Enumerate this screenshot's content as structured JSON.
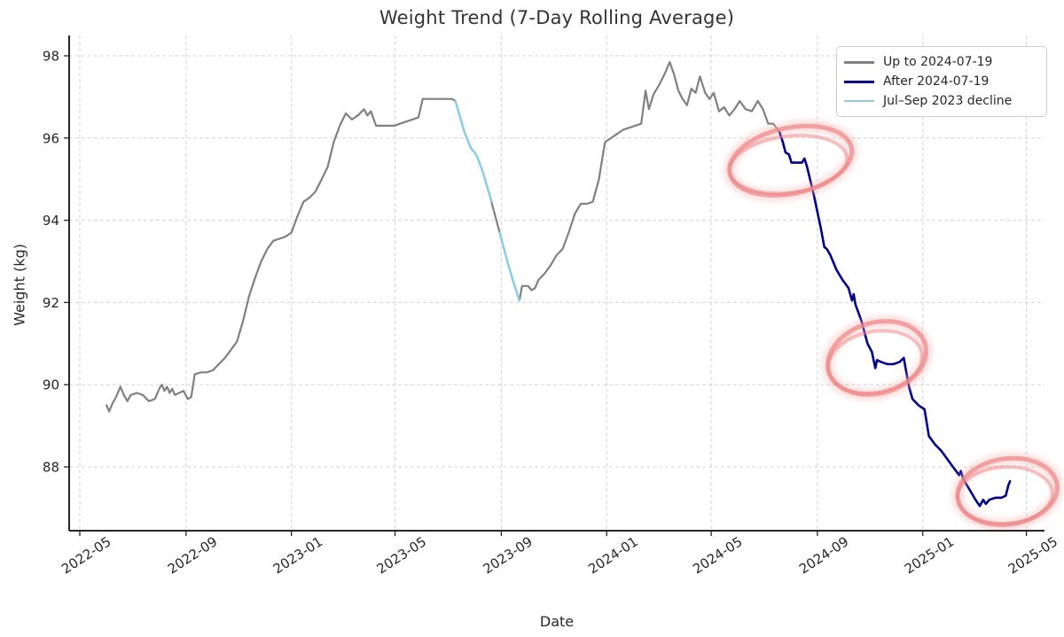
{
  "chart_data": {
    "type": "line",
    "title": "Weight Trend (7-Day Rolling Average)",
    "xlabel": "Date",
    "ylabel": "Weight (kg)",
    "x_tick_labels": [
      "2022-05",
      "2022-09",
      "2023-01",
      "2023-05",
      "2023-09",
      "2024-01",
      "2024-05",
      "2024-09",
      "2025-01",
      "2025-05"
    ],
    "y_tick_labels": [
      "88",
      "90",
      "92",
      "94",
      "96",
      "98"
    ],
    "y_ticks": [
      88,
      90,
      92,
      94,
      96,
      98
    ],
    "ylim": [
      86.45,
      98.55
    ],
    "xlim": [
      "2022-04-19",
      "2025-05-22"
    ],
    "grid": "dashed both axes",
    "legend": {
      "position": "upper right",
      "entries": [
        {
          "label": "Up to 2024-07-19",
          "color": "#808080"
        },
        {
          "label": "After 2024-07-19",
          "color": "#00008B"
        },
        {
          "label": "Jul–Sep 2023 decline",
          "color": "#87CEEB"
        }
      ]
    },
    "series": [
      {
        "name": "Up to 2024-07-19",
        "color": "#808080",
        "width": 2.2,
        "points": [
          [
            "2022-06-01",
            89.5
          ],
          [
            "2022-06-04",
            89.35
          ],
          [
            "2022-06-08",
            89.55
          ],
          [
            "2022-06-12",
            89.7
          ],
          [
            "2022-06-17",
            89.95
          ],
          [
            "2022-06-21",
            89.75
          ],
          [
            "2022-06-25",
            89.6
          ],
          [
            "2022-06-29",
            89.75
          ],
          [
            "2022-07-06",
            89.8
          ],
          [
            "2022-07-13",
            89.75
          ],
          [
            "2022-07-20",
            89.6
          ],
          [
            "2022-07-27",
            89.65
          ],
          [
            "2022-08-01",
            89.9
          ],
          [
            "2022-08-04",
            90.0
          ],
          [
            "2022-08-07",
            89.85
          ],
          [
            "2022-08-10",
            89.95
          ],
          [
            "2022-08-13",
            89.8
          ],
          [
            "2022-08-16",
            89.9
          ],
          [
            "2022-08-19",
            89.75
          ],
          [
            "2022-08-24",
            89.8
          ],
          [
            "2022-08-29",
            89.85
          ],
          [
            "2022-09-03",
            89.65
          ],
          [
            "2022-09-07",
            89.7
          ],
          [
            "2022-09-11",
            90.25
          ],
          [
            "2022-09-18",
            90.3
          ],
          [
            "2022-09-25",
            90.3
          ],
          [
            "2022-10-02",
            90.35
          ],
          [
            "2022-10-09",
            90.5
          ],
          [
            "2022-10-16",
            90.65
          ],
          [
            "2022-10-23",
            90.85
          ],
          [
            "2022-10-30",
            91.05
          ],
          [
            "2022-11-06",
            91.55
          ],
          [
            "2022-11-13",
            92.15
          ],
          [
            "2022-11-20",
            92.6
          ],
          [
            "2022-11-27",
            93.0
          ],
          [
            "2022-12-04",
            93.3
          ],
          [
            "2022-12-11",
            93.5
          ],
          [
            "2022-12-18",
            93.55
          ],
          [
            "2022-12-25",
            93.6
          ],
          [
            "2023-01-01",
            93.7
          ],
          [
            "2023-01-08",
            94.1
          ],
          [
            "2023-01-15",
            94.45
          ],
          [
            "2023-01-22",
            94.55
          ],
          [
            "2023-01-29",
            94.7
          ],
          [
            "2023-02-05",
            95.0
          ],
          [
            "2023-02-12",
            95.3
          ],
          [
            "2023-02-19",
            95.9
          ],
          [
            "2023-02-26",
            96.3
          ],
          [
            "2023-03-05",
            96.6
          ],
          [
            "2023-03-12",
            96.45
          ],
          [
            "2023-03-19",
            96.55
          ],
          [
            "2023-03-26",
            96.7
          ],
          [
            "2023-03-30",
            96.55
          ],
          [
            "2023-04-03",
            96.65
          ],
          [
            "2023-04-09",
            96.3
          ],
          [
            "2023-04-16",
            96.3
          ],
          [
            "2023-04-23",
            96.3
          ],
          [
            "2023-04-30",
            96.3
          ],
          [
            "2023-05-07",
            96.35
          ],
          [
            "2023-05-14",
            96.4
          ],
          [
            "2023-05-21",
            96.45
          ],
          [
            "2023-05-28",
            96.5
          ],
          [
            "2023-06-02",
            96.95
          ],
          [
            "2023-06-09",
            96.95
          ],
          [
            "2023-06-16",
            96.95
          ],
          [
            "2023-06-23",
            96.95
          ],
          [
            "2023-06-30",
            96.95
          ],
          [
            "2023-07-06",
            96.95
          ],
          [
            "2023-07-10",
            96.9
          ],
          [
            "2023-07-14",
            96.6
          ],
          [
            "2023-07-21",
            96.1
          ],
          [
            "2023-07-28",
            95.75
          ],
          [
            "2023-08-01",
            95.65
          ],
          [
            "2023-08-04",
            95.55
          ],
          [
            "2023-08-11",
            95.15
          ],
          [
            "2023-08-18",
            94.65
          ],
          [
            "2023-08-25",
            94.1
          ],
          [
            "2023-09-01",
            93.55
          ],
          [
            "2023-09-08",
            93.0
          ],
          [
            "2023-09-15",
            92.5
          ],
          [
            "2023-09-22",
            92.05
          ],
          [
            "2023-09-25",
            92.4
          ],
          [
            "2023-10-02",
            92.4
          ],
          [
            "2023-10-06",
            92.3
          ],
          [
            "2023-10-10",
            92.35
          ],
          [
            "2023-10-14",
            92.55
          ],
          [
            "2023-10-21",
            92.7
          ],
          [
            "2023-10-28",
            92.9
          ],
          [
            "2023-11-04",
            93.15
          ],
          [
            "2023-11-11",
            93.3
          ],
          [
            "2023-11-18",
            93.7
          ],
          [
            "2023-11-25",
            94.15
          ],
          [
            "2023-12-02",
            94.4
          ],
          [
            "2023-12-09",
            94.4
          ],
          [
            "2023-12-16",
            94.45
          ],
          [
            "2023-12-23",
            95.0
          ],
          [
            "2023-12-30",
            95.9
          ],
          [
            "2024-01-06",
            96.0
          ],
          [
            "2024-01-13",
            96.1
          ],
          [
            "2024-01-20",
            96.2
          ],
          [
            "2024-01-27",
            96.25
          ],
          [
            "2024-02-03",
            96.3
          ],
          [
            "2024-02-10",
            96.35
          ],
          [
            "2024-02-15",
            97.15
          ],
          [
            "2024-02-19",
            96.7
          ],
          [
            "2024-02-24",
            97.05
          ],
          [
            "2024-03-02",
            97.3
          ],
          [
            "2024-03-09",
            97.6
          ],
          [
            "2024-03-14",
            97.85
          ],
          [
            "2024-03-19",
            97.55
          ],
          [
            "2024-03-24",
            97.15
          ],
          [
            "2024-03-29",
            96.95
          ],
          [
            "2024-04-03",
            96.8
          ],
          [
            "2024-04-08",
            97.2
          ],
          [
            "2024-04-13",
            97.1
          ],
          [
            "2024-04-18",
            97.5
          ],
          [
            "2024-04-24",
            97.1
          ],
          [
            "2024-04-29",
            96.95
          ],
          [
            "2024-05-04",
            97.1
          ],
          [
            "2024-05-10",
            96.65
          ],
          [
            "2024-05-16",
            96.75
          ],
          [
            "2024-05-22",
            96.55
          ],
          [
            "2024-05-28",
            96.7
          ],
          [
            "2024-06-03",
            96.9
          ],
          [
            "2024-06-10",
            96.7
          ],
          [
            "2024-06-17",
            96.65
          ],
          [
            "2024-06-24",
            96.9
          ],
          [
            "2024-06-30",
            96.7
          ],
          [
            "2024-07-06",
            96.35
          ],
          [
            "2024-07-12",
            96.35
          ],
          [
            "2024-07-19",
            96.15
          ]
        ]
      },
      {
        "name": "Jul–Sep 2023 decline",
        "color": "#87CEEB",
        "width": 2.4,
        "segments": [
          [
            [
              "2023-07-10",
              96.9
            ],
            [
              "2023-07-14",
              96.6
            ],
            [
              "2023-07-21",
              96.1
            ],
            [
              "2023-07-28",
              95.75
            ],
            [
              "2023-08-01",
              95.65
            ],
            [
              "2023-08-04",
              95.55
            ],
            [
              "2023-08-11",
              95.15
            ],
            [
              "2023-08-18",
              94.65
            ],
            [
              "2023-08-21",
              94.45
            ]
          ],
          [
            [
              "2023-08-30",
              93.7
            ],
            [
              "2023-09-01",
              93.55
            ],
            [
              "2023-09-08",
              93.0
            ],
            [
              "2023-09-15",
              92.5
            ],
            [
              "2023-09-22",
              92.05
            ]
          ]
        ]
      },
      {
        "name": "After 2024-07-19",
        "color": "#00008B",
        "width": 2.6,
        "points": [
          [
            "2024-07-19",
            96.15
          ],
          [
            "2024-07-23",
            95.9
          ],
          [
            "2024-07-26",
            95.65
          ],
          [
            "2024-07-30",
            95.6
          ],
          [
            "2024-08-02",
            95.4
          ],
          [
            "2024-08-09",
            95.4
          ],
          [
            "2024-08-14",
            95.4
          ],
          [
            "2024-08-17",
            95.5
          ],
          [
            "2024-08-20",
            95.3
          ],
          [
            "2024-08-24",
            94.95
          ],
          [
            "2024-08-28",
            94.6
          ],
          [
            "2024-09-01",
            94.2
          ],
          [
            "2024-09-05",
            93.8
          ],
          [
            "2024-09-09",
            93.35
          ],
          [
            "2024-09-12",
            93.3
          ],
          [
            "2024-09-16",
            93.15
          ],
          [
            "2024-09-23",
            92.8
          ],
          [
            "2024-09-30",
            92.55
          ],
          [
            "2024-10-07",
            92.35
          ],
          [
            "2024-10-11",
            92.05
          ],
          [
            "2024-10-13",
            92.2
          ],
          [
            "2024-10-15",
            91.95
          ],
          [
            "2024-10-22",
            91.55
          ],
          [
            "2024-10-29",
            91.0
          ],
          [
            "2024-11-03",
            90.8
          ],
          [
            "2024-11-07",
            90.4
          ],
          [
            "2024-11-09",
            90.6
          ],
          [
            "2024-11-14",
            90.55
          ],
          [
            "2024-11-21",
            90.5
          ],
          [
            "2024-11-28",
            90.5
          ],
          [
            "2024-12-05",
            90.55
          ],
          [
            "2024-12-10",
            90.65
          ],
          [
            "2024-12-13",
            90.3
          ],
          [
            "2024-12-16",
            89.95
          ],
          [
            "2024-12-20",
            89.65
          ],
          [
            "2024-12-27",
            89.5
          ],
          [
            "2025-01-03",
            89.4
          ],
          [
            "2025-01-08",
            88.75
          ],
          [
            "2025-01-15",
            88.55
          ],
          [
            "2025-01-22",
            88.4
          ],
          [
            "2025-01-29",
            88.2
          ],
          [
            "2025-02-05",
            88.0
          ],
          [
            "2025-02-12",
            87.8
          ],
          [
            "2025-02-14",
            87.9
          ],
          [
            "2025-02-17",
            87.7
          ],
          [
            "2025-02-24",
            87.45
          ],
          [
            "2025-03-03",
            87.2
          ],
          [
            "2025-03-08",
            87.05
          ],
          [
            "2025-03-12",
            87.2
          ],
          [
            "2025-03-15",
            87.1
          ],
          [
            "2025-03-19",
            87.2
          ],
          [
            "2025-03-26",
            87.25
          ],
          [
            "2025-04-02",
            87.25
          ],
          [
            "2025-04-07",
            87.3
          ],
          [
            "2025-04-10",
            87.55
          ],
          [
            "2025-04-12",
            87.65
          ]
        ]
      }
    ],
    "annotations": [
      {
        "shape": "hand-drawn ellipse",
        "center_date": "2024-08-01",
        "center_kg": 95.45,
        "rx_days": 72,
        "ry_kg": 0.8,
        "rotation_deg": -12
      },
      {
        "shape": "hand-drawn ellipse",
        "center_date": "2024-11-09",
        "center_kg": 90.65,
        "rx_days": 58,
        "ry_kg": 0.86,
        "rotation_deg": -16
      },
      {
        "shape": "hand-drawn ellipse",
        "center_date": "2025-04-09",
        "center_kg": 87.4,
        "rx_days": 58,
        "ry_kg": 0.8,
        "rotation_deg": -8
      }
    ]
  },
  "colors": {
    "background": "#ffffff",
    "grid": "#d3d3d3",
    "spine": "#262626",
    "tick_label": "#262626",
    "title": "#333333",
    "annotation_core": "#ee8484",
    "annotation_glow": "#f5b2b2"
  }
}
